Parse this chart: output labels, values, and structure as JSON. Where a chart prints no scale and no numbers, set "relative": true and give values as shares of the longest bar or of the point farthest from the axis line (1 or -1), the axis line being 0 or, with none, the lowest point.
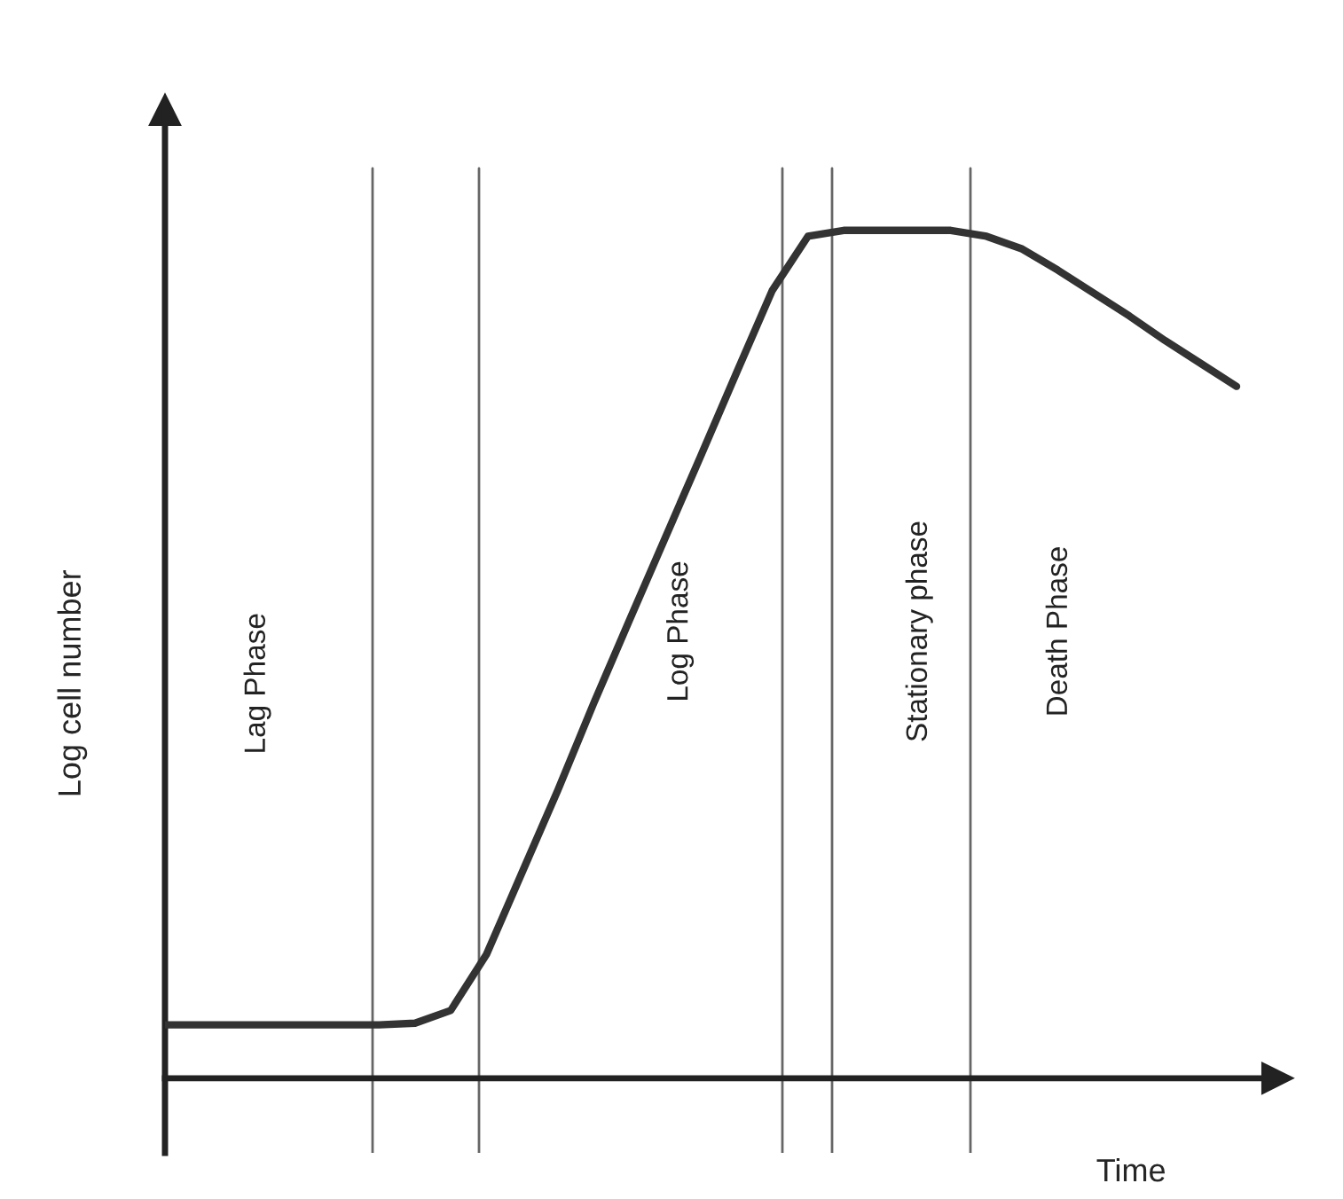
{
  "chart_data": {
    "type": "line",
    "relative": true,
    "xlabel": "Time",
    "ylabel": "Log cell number",
    "marker": "none",
    "line_style": "solid",
    "categories": [
      null,
      null,
      null,
      null,
      null,
      null,
      null,
      null,
      null,
      null,
      null,
      null,
      null,
      null,
      null,
      null,
      null,
      null,
      null,
      null,
      null,
      null,
      null,
      null,
      null,
      null,
      null,
      null,
      null,
      null,
      null
    ],
    "series": [
      {
        "color": "#333333",
        "values": [
          0.063,
          0.063,
          0.063,
          0.063,
          0.063,
          0.063,
          0.063,
          0.065,
          0.08,
          0.146,
          0.243,
          0.34,
          0.442,
          0.54,
          0.637,
          0.734,
          0.832,
          0.929,
          0.993,
          1,
          1,
          1,
          1,
          0.993,
          0.978,
          0.953,
          0.926,
          0.899,
          0.87,
          0.843,
          0.816
        ]
      }
    ],
    "annotations": [
      "Lag Phase",
      "Log Phase",
      "Stationary phase",
      "Death Phase"
    ]
  }
}
